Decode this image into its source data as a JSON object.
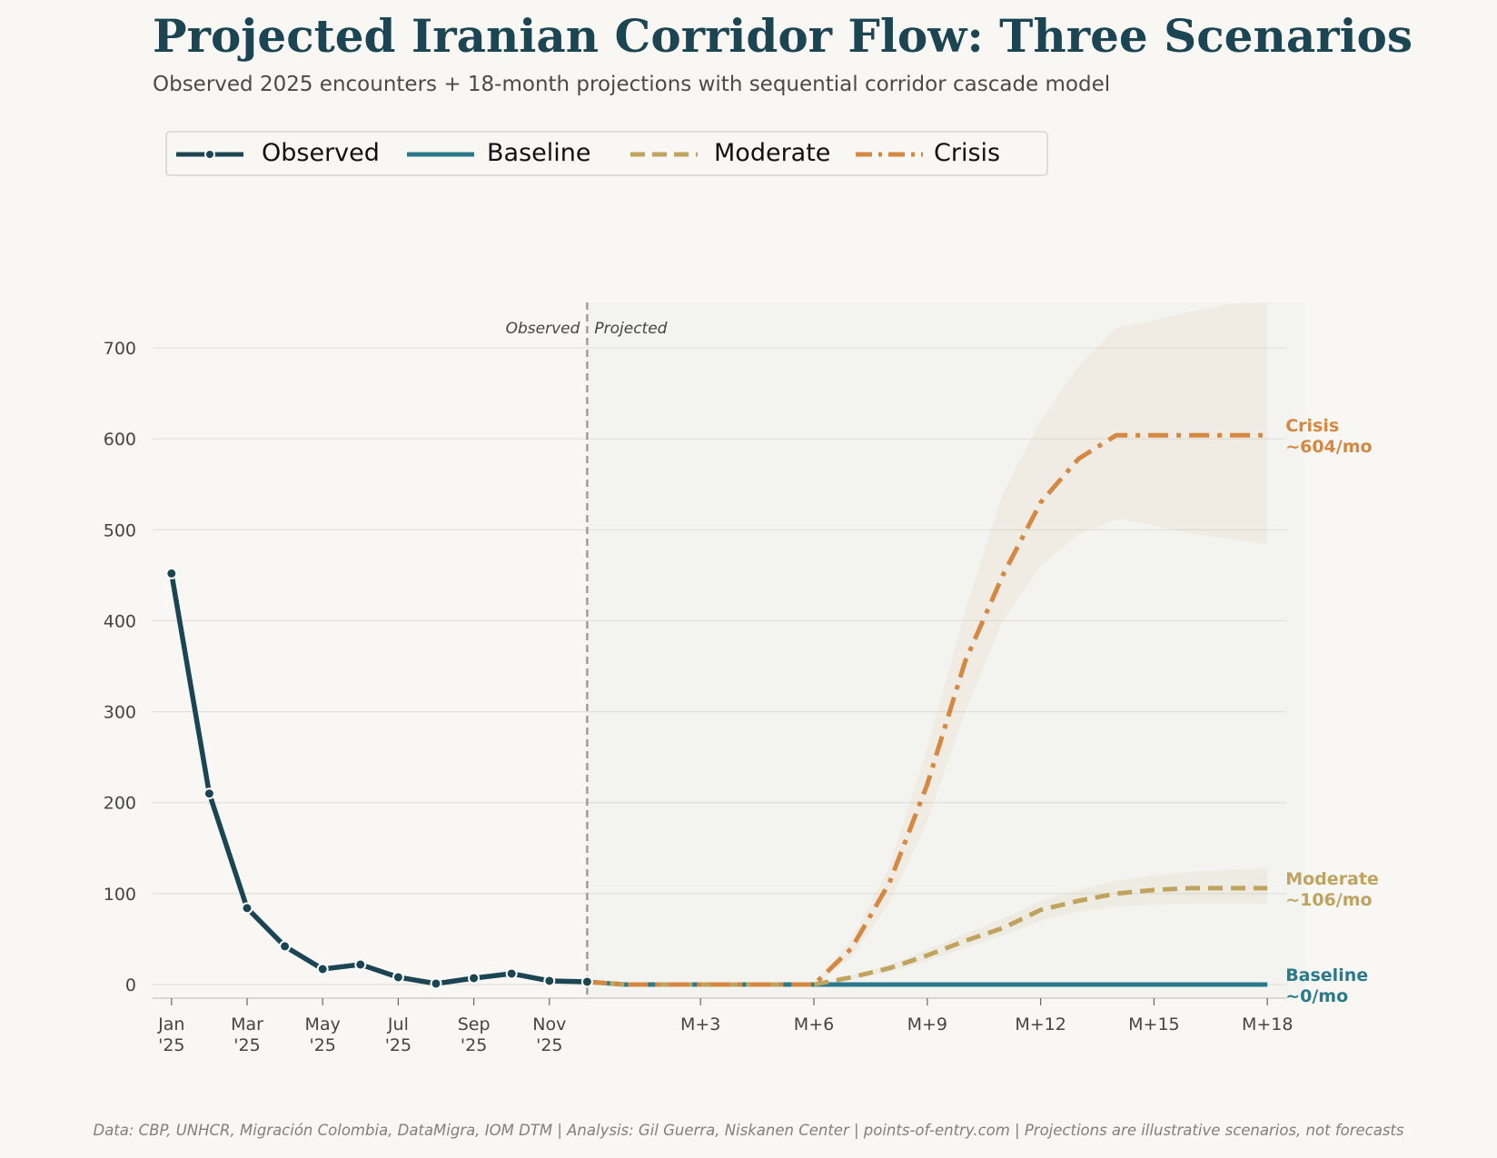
{
  "title": "Projected Iranian Corridor Flow: Three Scenarios",
  "subtitle": "Observed 2025 encounters + 18-month projections with sequential corridor cascade model",
  "footer": "Data: CBP, UNHCR, Migración Colombia, DataMigra, IOM DTM  |  Analysis: Gil Guerra, Niskanen Center  |  points-of-entry.com  |  Projections are illustrative scenarios, not forecasts",
  "colors": {
    "observed": "#1b4553",
    "baseline": "#2a7a8c",
    "moderate": "#bfa35f",
    "crisis": "#d48841",
    "grid": "#e2e0dc",
    "axis_text": "#444444",
    "divider": "#9e9e9e"
  },
  "legend": [
    {
      "key": "observed",
      "label": "Observed"
    },
    {
      "key": "baseline",
      "label": "Baseline"
    },
    {
      "key": "moderate",
      "label": "Moderate"
    },
    {
      "key": "crisis",
      "label": "Crisis"
    }
  ],
  "chart_data": {
    "type": "line",
    "ylim": [
      -15,
      750
    ],
    "y_ticks": [
      0,
      100,
      200,
      300,
      400,
      500,
      600,
      700
    ],
    "x_range": [
      -0.5,
      29.5
    ],
    "x_ticks": [
      {
        "x": 0,
        "label": [
          "Jan",
          "'25"
        ]
      },
      {
        "x": 2,
        "label": [
          "Mar",
          "'25"
        ]
      },
      {
        "x": 4,
        "label": [
          "May",
          "'25"
        ]
      },
      {
        "x": 6,
        "label": [
          "Jul",
          "'25"
        ]
      },
      {
        "x": 8,
        "label": [
          "Sep",
          "'25"
        ]
      },
      {
        "x": 10,
        "label": [
          "Nov",
          "'25"
        ]
      },
      {
        "x": 14,
        "label": [
          "M+3"
        ]
      },
      {
        "x": 17,
        "label": [
          "M+6"
        ]
      },
      {
        "x": 20,
        "label": [
          "M+9"
        ]
      },
      {
        "x": 23,
        "label": [
          "M+12"
        ]
      },
      {
        "x": 26,
        "label": [
          "M+15"
        ]
      },
      {
        "x": 29,
        "label": [
          "M+18"
        ]
      }
    ],
    "divider_x": 11,
    "divider_labels": {
      "left": "Observed",
      "right": "Projected"
    },
    "projection_shade_x": [
      11,
      30
    ],
    "observed": {
      "name": "Observed",
      "x": [
        0,
        1,
        2,
        3,
        4,
        5,
        6,
        7,
        8,
        9,
        10,
        11
      ],
      "values": [
        452,
        210,
        84,
        42,
        17,
        22,
        8,
        1,
        7,
        12,
        4,
        3
      ]
    },
    "series": [
      {
        "key": "baseline",
        "name": "Baseline",
        "x": [
          11,
          12,
          13,
          14,
          15,
          16,
          17,
          18,
          19,
          20,
          21,
          22,
          23,
          24,
          25,
          26,
          27,
          28,
          29
        ],
        "values": [
          3,
          0,
          0,
          0,
          0,
          0,
          0,
          0,
          0,
          0,
          0,
          0,
          0,
          0,
          0,
          0,
          0,
          0,
          0
        ],
        "end_label": [
          "Baseline",
          "~0/mo"
        ]
      },
      {
        "key": "moderate",
        "name": "Moderate",
        "x": [
          11,
          12,
          13,
          14,
          15,
          16,
          17,
          18,
          19,
          20,
          21,
          22,
          23,
          24,
          25,
          26,
          27,
          28,
          29
        ],
        "values": [
          3,
          0,
          0,
          0,
          0,
          0,
          0,
          8,
          18,
          32,
          48,
          62,
          82,
          92,
          100,
          104,
          106,
          106,
          106
        ],
        "band_low": [
          3,
          0,
          0,
          0,
          0,
          0,
          0,
          6,
          14,
          26,
          40,
          54,
          70,
          80,
          86,
          88,
          89,
          89,
          89
        ],
        "band_high": [
          3,
          0,
          0,
          0,
          0,
          0,
          0,
          10,
          22,
          38,
          56,
          72,
          92,
          104,
          114,
          120,
          124,
          126,
          128
        ],
        "end_label": [
          "Moderate",
          "~106/mo"
        ]
      },
      {
        "key": "crisis",
        "name": "Crisis",
        "x": [
          11,
          12,
          13,
          14,
          15,
          16,
          17,
          18,
          19,
          20,
          21,
          22,
          23,
          24,
          25,
          26,
          27,
          28,
          29
        ],
        "values": [
          3,
          0,
          0,
          0,
          0,
          0,
          0,
          40,
          112,
          220,
          355,
          450,
          530,
          578,
          604,
          604,
          604,
          604,
          604
        ],
        "band_low": [
          3,
          0,
          0,
          0,
          0,
          0,
          0,
          30,
          90,
          180,
          300,
          400,
          460,
          495,
          512,
          505,
          496,
          490,
          484
        ],
        "band_high": [
          3,
          0,
          0,
          0,
          0,
          0,
          0,
          50,
          130,
          260,
          410,
          540,
          620,
          680,
          722,
          730,
          740,
          748,
          750
        ],
        "end_label": [
          "Crisis",
          "~604/mo"
        ]
      }
    ]
  }
}
